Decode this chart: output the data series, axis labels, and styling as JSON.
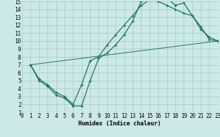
{
  "background_color": "#cce8e8",
  "grid_color": "#aacccc",
  "line_color": "#1a7060",
  "xlabel": "Humidex (Indice chaleur)",
  "xlim": [
    0,
    23
  ],
  "ylim": [
    1,
    15
  ],
  "xticks": [
    0,
    1,
    2,
    3,
    4,
    5,
    6,
    7,
    8,
    9,
    10,
    11,
    12,
    13,
    14,
    15,
    16,
    17,
    18,
    19,
    20,
    21,
    22,
    23
  ],
  "yticks": [
    1,
    2,
    3,
    4,
    5,
    6,
    7,
    8,
    9,
    10,
    11,
    12,
    13,
    14,
    15
  ],
  "curve1_x": [
    1,
    2,
    3,
    4,
    5,
    6,
    7,
    8,
    9,
    10,
    11,
    12,
    13,
    14,
    15,
    16,
    17,
    18,
    19,
    20,
    21,
    22,
    23
  ],
  "curve1_y": [
    7,
    5,
    4.3,
    3.2,
    2.8,
    1.8,
    1.8,
    5.0,
    7.8,
    8.5,
    9.5,
    10.8,
    12.5,
    15.0,
    15.2,
    15.0,
    15.5,
    14.5,
    14.8,
    13.2,
    11.8,
    10.2,
    10.0
  ],
  "curve2_x": [
    1,
    2,
    3,
    4,
    5,
    6,
    7,
    8,
    9,
    10,
    11,
    12,
    13,
    14,
    15,
    16,
    17,
    18,
    19,
    20,
    21,
    22,
    23
  ],
  "curve2_y": [
    7,
    5.2,
    4.5,
    3.5,
    3.0,
    2.0,
    4.5,
    7.5,
    8.0,
    9.5,
    10.8,
    12.0,
    13.2,
    14.5,
    15.2,
    15.0,
    14.5,
    14.0,
    13.5,
    13.2,
    11.5,
    10.5,
    10.0
  ],
  "line_x": [
    1,
    23
  ],
  "line_y": [
    7,
    10.0
  ],
  "tick_fontsize": 5.5,
  "xlabel_fontsize": 6.0
}
